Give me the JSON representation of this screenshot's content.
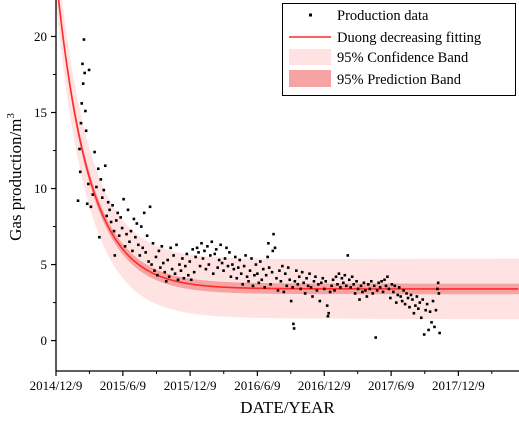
{
  "chart_data": {
    "type": "scatter",
    "xlabel": "DATE/YEAR",
    "ylabel": "Gas production/m",
    "ylabel_superscript": "3",
    "x_ticks": [
      "2014/12/9",
      "2015/6/9",
      "2015/12/9",
      "2016/6/9",
      "2016/12/9",
      "2017/6/9",
      "2017/12/9"
    ],
    "x_tick_days": [
      0,
      182,
      365,
      548,
      730,
      912,
      1095
    ],
    "xlim_days": [
      0,
      1260
    ],
    "y_ticks": [
      "0",
      "5",
      "10",
      "15",
      "20"
    ],
    "y_tick_values": [
      0,
      5,
      10,
      15,
      20
    ],
    "ylim": [
      -2,
      22.4
    ],
    "grid": false,
    "legend_position": "top-right",
    "legend": [
      {
        "label": "Production data",
        "kind": "marker"
      },
      {
        "label": "Duong decreasing fitting",
        "kind": "line"
      },
      {
        "label": "95% Confidence Band",
        "kind": "light-band"
      },
      {
        "label": "95% Prediction Band",
        "kind": "dark-band"
      }
    ],
    "colors": {
      "fit_line": "#ff2a2a",
      "confidence_band": "#ffe3e3",
      "prediction_band": "#f5a3a3",
      "points": "#000000"
    },
    "fit": {
      "model": "asymptotic-decline",
      "asymptote": 3.4,
      "amplitude": 20.6,
      "decay_days": 88,
      "x_start_days": -8,
      "x_end_days": 1260,
      "confidence_halfwidth": 0.35,
      "prediction_halfwidth_start": 1.9,
      "prediction_halfwidth_end": 2.0
    },
    "series": [
      {
        "name": "Production data",
        "points": [
          [
            60,
            9.2
          ],
          [
            64,
            12.6
          ],
          [
            66,
            11.1
          ],
          [
            68,
            14.3
          ],
          [
            70,
            15.6
          ],
          [
            72,
            18.2
          ],
          [
            74,
            16.9
          ],
          [
            76,
            19.8
          ],
          [
            78,
            17.6
          ],
          [
            80,
            15.1
          ],
          [
            82,
            13.8
          ],
          [
            85,
            9.0
          ],
          [
            88,
            10.3
          ],
          [
            90,
            17.8
          ],
          [
            95,
            8.8
          ],
          [
            100,
            9.6
          ],
          [
            105,
            12.4
          ],
          [
            110,
            10.1
          ],
          [
            115,
            11.3
          ],
          [
            118,
            6.8
          ],
          [
            122,
            10.6
          ],
          [
            126,
            9.4
          ],
          [
            130,
            9.9
          ],
          [
            134,
            11.5
          ],
          [
            138,
            8.2
          ],
          [
            142,
            9.1
          ],
          [
            146,
            8.6
          ],
          [
            150,
            7.8
          ],
          [
            154,
            8.9
          ],
          [
            158,
            7.2
          ],
          [
            160,
            5.6
          ],
          [
            164,
            7.9
          ],
          [
            168,
            8.4
          ],
          [
            172,
            6.9
          ],
          [
            176,
            8.1
          ],
          [
            180,
            7.4
          ],
          [
            184,
            9.3
          ],
          [
            188,
            6.2
          ],
          [
            192,
            7.0
          ],
          [
            196,
            8.6
          ],
          [
            200,
            6.5
          ],
          [
            204,
            7.2
          ],
          [
            208,
            5.9
          ],
          [
            212,
            8.0
          ],
          [
            216,
            6.8
          ],
          [
            220,
            7.7
          ],
          [
            224,
            6.3
          ],
          [
            228,
            5.6
          ],
          [
            232,
            7.5
          ],
          [
            236,
            6.1
          ],
          [
            240,
            8.4
          ],
          [
            244,
            5.8
          ],
          [
            248,
            6.9
          ],
          [
            252,
            5.2
          ],
          [
            256,
            8.8
          ],
          [
            260,
            5.0
          ],
          [
            264,
            6.4
          ],
          [
            268,
            4.6
          ],
          [
            272,
            5.5
          ],
          [
            276,
            4.3
          ],
          [
            280,
            5.9
          ],
          [
            284,
            4.8
          ],
          [
            288,
            6.2
          ],
          [
            292,
            5.1
          ],
          [
            296,
            4.5
          ],
          [
            300,
            3.9
          ],
          [
            304,
            5.3
          ],
          [
            308,
            4.2
          ],
          [
            312,
            6.1
          ],
          [
            316,
            4.7
          ],
          [
            320,
            5.6
          ],
          [
            324,
            4.4
          ],
          [
            328,
            6.3
          ],
          [
            332,
            4.0
          ],
          [
            336,
            5.0
          ],
          [
            340,
            4.6
          ],
          [
            344,
            5.4
          ],
          [
            348,
            4.1
          ],
          [
            352,
            4.9
          ],
          [
            356,
            5.7
          ],
          [
            360,
            4.3
          ],
          [
            364,
            5.2
          ],
          [
            368,
            4.0
          ],
          [
            372,
            6.0
          ],
          [
            376,
            4.5
          ],
          [
            380,
            5.5
          ],
          [
            384,
            6.1
          ],
          [
            388,
            5.8
          ],
          [
            392,
            4.9
          ],
          [
            396,
            6.4
          ],
          [
            400,
            5.4
          ],
          [
            404,
            5.9
          ],
          [
            408,
            4.7
          ],
          [
            412,
            6.2
          ],
          [
            416,
            5.0
          ],
          [
            420,
            5.6
          ],
          [
            424,
            6.5
          ],
          [
            428,
            4.4
          ],
          [
            432,
            5.7
          ],
          [
            436,
            6.0
          ],
          [
            440,
            4.8
          ],
          [
            444,
            5.3
          ],
          [
            448,
            6.3
          ],
          [
            452,
            5.1
          ],
          [
            456,
            4.6
          ],
          [
            460,
            5.4
          ],
          [
            464,
            6.1
          ],
          [
            468,
            4.9
          ],
          [
            472,
            5.8
          ],
          [
            476,
            4.2
          ],
          [
            480,
            5.0
          ],
          [
            484,
            4.7
          ],
          [
            488,
            5.5
          ],
          [
            492,
            4.1
          ],
          [
            496,
            4.8
          ],
          [
            500,
            5.3
          ],
          [
            504,
            4.4
          ],
          [
            508,
            3.7
          ],
          [
            512,
            4.9
          ],
          [
            516,
            5.6
          ],
          [
            520,
            4.2
          ],
          [
            524,
            3.9
          ],
          [
            528,
            4.6
          ],
          [
            532,
            5.4
          ],
          [
            536,
            3.6
          ],
          [
            540,
            4.3
          ],
          [
            544,
            5.0
          ],
          [
            548,
            4.4
          ],
          [
            552,
            3.8
          ],
          [
            556,
            5.2
          ],
          [
            560,
            4.0
          ],
          [
            564,
            4.7
          ],
          [
            568,
            3.5
          ],
          [
            572,
            4.3
          ],
          [
            576,
            5.5
          ],
          [
            578,
            6.4
          ],
          [
            580,
            4.8
          ],
          [
            584,
            3.7
          ],
          [
            588,
            4.5
          ],
          [
            590,
            5.9
          ],
          [
            592,
            7.0
          ],
          [
            596,
            6.1
          ],
          [
            600,
            4.1
          ],
          [
            604,
            3.3
          ],
          [
            608,
            4.6
          ],
          [
            612,
            3.9
          ],
          [
            616,
            4.9
          ],
          [
            620,
            3.2
          ],
          [
            624,
            4.4
          ],
          [
            628,
            3.6
          ],
          [
            632,
            4.8
          ],
          [
            636,
            4.0
          ],
          [
            640,
            2.6
          ],
          [
            644,
            3.5
          ],
          [
            646,
            1.1
          ],
          [
            648,
            0.8
          ],
          [
            650,
            3.9
          ],
          [
            654,
            4.6
          ],
          [
            658,
            3.7
          ],
          [
            662,
            4.2
          ],
          [
            666,
            3.4
          ],
          [
            670,
            4.5
          ],
          [
            674,
            3.8
          ],
          [
            678,
            3.1
          ],
          [
            682,
            4.1
          ],
          [
            686,
            3.6
          ],
          [
            690,
            4.4
          ],
          [
            694,
            3.5
          ],
          [
            698,
            2.9
          ],
          [
            702,
            3.9
          ],
          [
            706,
            4.2
          ],
          [
            710,
            3.3
          ],
          [
            714,
            3.7
          ],
          [
            718,
            2.6
          ],
          [
            722,
            3.8
          ],
          [
            726,
            4.1
          ],
          [
            730,
            3.4
          ],
          [
            734,
            3.9
          ],
          [
            738,
            2.3
          ],
          [
            740,
            1.6
          ],
          [
            742,
            1.8
          ],
          [
            746,
            3.2
          ],
          [
            750,
            3.6
          ],
          [
            754,
            4.0
          ],
          [
            758,
            3.3
          ],
          [
            762,
            4.2
          ],
          [
            766,
            3.7
          ],
          [
            770,
            4.4
          ],
          [
            774,
            3.5
          ],
          [
            778,
            4.1
          ],
          [
            782,
            3.8
          ],
          [
            786,
            4.3
          ],
          [
            790,
            3.6
          ],
          [
            794,
            5.6
          ],
          [
            798,
            4.0
          ],
          [
            802,
            3.5
          ],
          [
            806,
            4.2
          ],
          [
            810,
            3.7
          ],
          [
            814,
            3.1
          ],
          [
            818,
            3.9
          ],
          [
            822,
            3.4
          ],
          [
            826,
            2.7
          ],
          [
            830,
            3.6
          ],
          [
            834,
            3.2
          ],
          [
            838,
            3.8
          ],
          [
            842,
            3.3
          ],
          [
            846,
            2.9
          ],
          [
            850,
            3.7
          ],
          [
            854,
            3.4
          ],
          [
            858,
            3.9
          ],
          [
            862,
            3.1
          ],
          [
            866,
            3.6
          ],
          [
            870,
            0.2
          ],
          [
            874,
            3.3
          ],
          [
            878,
            3.8
          ],
          [
            882,
            3.5
          ],
          [
            886,
            3.9
          ],
          [
            890,
            3.2
          ],
          [
            894,
            4.0
          ],
          [
            898,
            3.6
          ],
          [
            902,
            4.2
          ],
          [
            906,
            3.4
          ],
          [
            910,
            2.8
          ],
          [
            914,
            3.7
          ],
          [
            918,
            3.2
          ],
          [
            922,
            3.6
          ],
          [
            926,
            2.5
          ],
          [
            930,
            3.0
          ],
          [
            934,
            3.5
          ],
          [
            938,
            2.9
          ],
          [
            942,
            2.6
          ],
          [
            946,
            3.3
          ],
          [
            950,
            2.4
          ],
          [
            954,
            3.1
          ],
          [
            958,
            2.8
          ],
          [
            962,
            2.2
          ],
          [
            966,
            3.0
          ],
          [
            970,
            2.7
          ],
          [
            974,
            1.8
          ],
          [
            978,
            2.3
          ],
          [
            982,
            2.9
          ],
          [
            986,
            2.1
          ],
          [
            990,
            2.5
          ],
          [
            994,
            1.5
          ],
          [
            998,
            2.7
          ],
          [
            1002,
            0.4
          ],
          [
            1006,
            2.0
          ],
          [
            1010,
            2.4
          ],
          [
            1014,
            0.7
          ],
          [
            1018,
            1.9
          ],
          [
            1022,
            1.2
          ],
          [
            1026,
            2.6
          ],
          [
            1030,
            0.9
          ],
          [
            1034,
            2.0
          ],
          [
            1038,
            3.4
          ],
          [
            1040,
            3.8
          ],
          [
            1042,
            3.1
          ],
          [
            1044,
            0.5
          ]
        ]
      }
    ]
  }
}
